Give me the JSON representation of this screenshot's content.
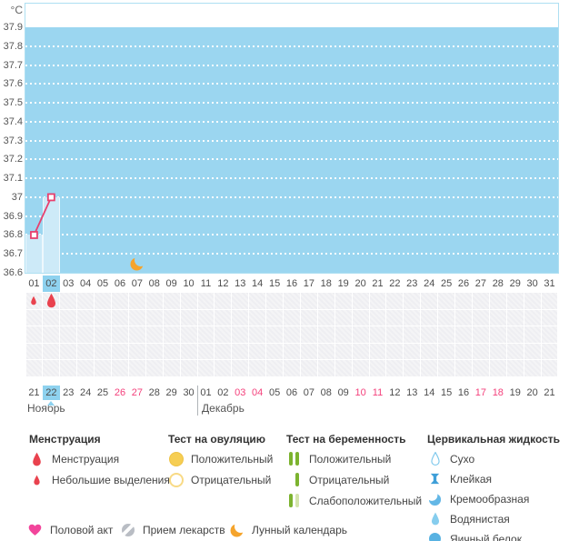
{
  "chart_data": {
    "type": "line",
    "title": "",
    "unit": "°C",
    "ylim": [
      36.6,
      37.9
    ],
    "ytick_step": 0.1,
    "yticks": [
      "37.9",
      "37.8",
      "37.7",
      "37.6",
      "37.5",
      "37.4",
      "37.3",
      "37.2",
      "37.1",
      "37",
      "36.9",
      "36.8",
      "36.7",
      "36.6"
    ],
    "xticks": [
      "01",
      "02",
      "03",
      "04",
      "05",
      "06",
      "07",
      "08",
      "09",
      "10",
      "11",
      "12",
      "13",
      "14",
      "15",
      "16",
      "17",
      "18",
      "19",
      "20",
      "21",
      "22",
      "23",
      "24",
      "25",
      "26",
      "27",
      "28",
      "29",
      "30",
      "31"
    ],
    "grid": "horizontal-dotted-white",
    "legend_position": "bottom",
    "band_fill_below": 37.9,
    "points": [
      {
        "day": 1,
        "temp": 36.8
      },
      {
        "day": 2,
        "temp": 37.0
      }
    ],
    "selected_day": 2,
    "moon_day": 7
  },
  "events": {
    "menstruation": [
      {
        "day": 1,
        "intensity": "small"
      },
      {
        "day": 2,
        "intensity": "normal"
      }
    ]
  },
  "calendar": {
    "months": [
      {
        "name": "Ноябрь",
        "days": [
          "21",
          "22",
          "23",
          "24",
          "25",
          "26",
          "27",
          "28",
          "29",
          "30"
        ],
        "weekend": [
          "26",
          "27"
        ],
        "selected": "22"
      },
      {
        "name": "Декабрь",
        "days": [
          "01",
          "02",
          "03",
          "04",
          "05",
          "06",
          "07",
          "08",
          "09",
          "10",
          "11",
          "12",
          "13",
          "14",
          "15",
          "16",
          "17",
          "18",
          "19",
          "20",
          "21"
        ],
        "weekend": [
          "03",
          "04",
          "10",
          "11",
          "17",
          "18"
        ],
        "selected": ""
      }
    ]
  },
  "legend": {
    "sections": [
      {
        "title": "Менструация",
        "items": [
          {
            "icon": "menstruation",
            "label": "Менструация"
          },
          {
            "icon": "spotting",
            "label": "Небольшие выделения"
          }
        ]
      },
      {
        "title": "Тест на овуляцию",
        "items": [
          {
            "icon": "ovulation-positive",
            "label": "Положительный"
          },
          {
            "icon": "ovulation-negative",
            "label": "Отрицательный"
          }
        ]
      },
      {
        "title": "Тест на беременность",
        "items": [
          {
            "icon": "pregnancy-positive",
            "label": "Положительный"
          },
          {
            "icon": "pregnancy-negative",
            "label": "Отрицательный"
          },
          {
            "icon": "pregnancy-weak",
            "label": "Слабоположительный"
          }
        ]
      },
      {
        "title": "Цервикальная жидкость",
        "items": [
          {
            "icon": "cf-dry",
            "label": "Сухо"
          },
          {
            "icon": "cf-sticky",
            "label": "Клейкая"
          },
          {
            "icon": "cf-creamy",
            "label": "Кремообразная"
          },
          {
            "icon": "cf-watery",
            "label": "Водянистая"
          },
          {
            "icon": "cf-eggwhite",
            "label": "Яичный белок"
          }
        ]
      }
    ],
    "footer_items": [
      {
        "icon": "intercourse",
        "label": "Половой акт"
      },
      {
        "icon": "medication",
        "label": "Прием лекарств"
      },
      {
        "icon": "moon",
        "label": "Лунный календарь"
      }
    ]
  },
  "colors": {
    "band": "#9bd6f0",
    "bar": "#cdeaf8",
    "line": "#e8406e",
    "selected_day_bg": "#8ed2ef",
    "weekend_text": "#f4417c",
    "menstruation_red": "#e9424e",
    "ovulation_yellow": "#f6ce53",
    "pregnancy_green": "#7cb32f",
    "pregnancy_pale_green": "#d4e4ac",
    "cervical_blue": "#58b2e2",
    "heart_pink": "#f2459b",
    "medication_gray": "#b9bdc4",
    "moon_orange": "#f5a42c"
  }
}
